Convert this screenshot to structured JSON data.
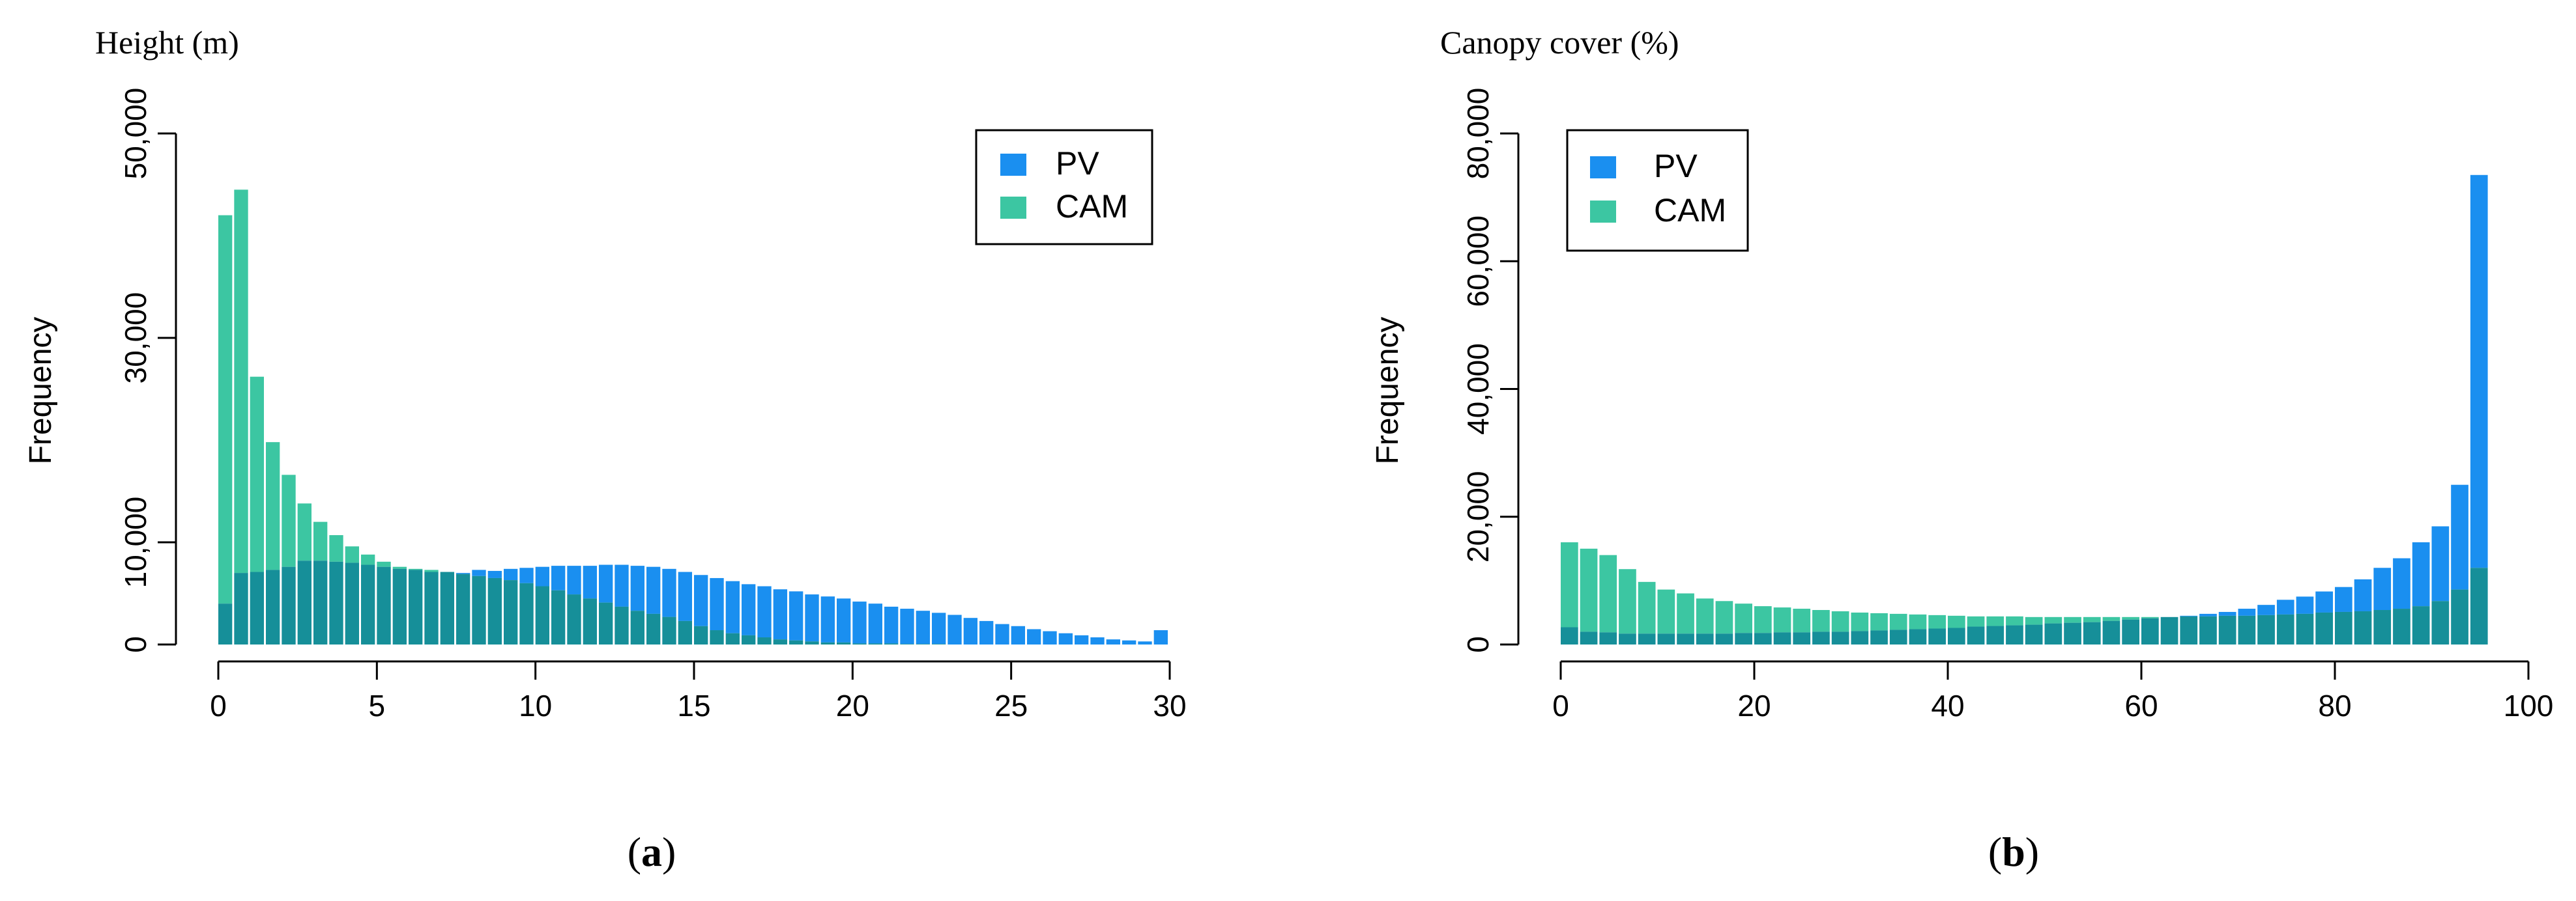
{
  "colors": {
    "pv": "#1a8ff0",
    "cam": "#3cc6a2",
    "overlap": "#168f99",
    "axis": "#000000"
  },
  "chart_data": [
    {
      "id": "a",
      "type": "bar",
      "title": "Height (m)",
      "xlabel": "",
      "ylabel": "Frequency",
      "panel_label": {
        "open": "(",
        "letter": "a",
        "close": ")"
      },
      "xlim": [
        0,
        30
      ],
      "ylim": [
        0,
        50000
      ],
      "bin_width": 0.5,
      "xticks": [
        0,
        5,
        10,
        15,
        20,
        25,
        30
      ],
      "xtick_labels": [
        "0",
        "5",
        "10",
        "15",
        "20",
        "25",
        "30"
      ],
      "yticks": [
        0,
        10000,
        30000,
        50000
      ],
      "ytick_labels": [
        "0",
        "10,000",
        "30,000",
        "50,000"
      ],
      "legend": {
        "position": "top-right",
        "entries": [
          "PV",
          "CAM"
        ]
      },
      "series": [
        {
          "name": "PV",
          "values": [
            4000,
            7000,
            7100,
            7300,
            7600,
            8200,
            8200,
            8100,
            8000,
            7800,
            7600,
            7400,
            7300,
            7100,
            7100,
            7000,
            7300,
            7200,
            7400,
            7500,
            7600,
            7700,
            7700,
            7700,
            7800,
            7800,
            7700,
            7600,
            7400,
            7100,
            6800,
            6500,
            6200,
            5900,
            5700,
            5400,
            5200,
            4900,
            4700,
            4500,
            4200,
            4000,
            3700,
            3500,
            3300,
            3100,
            2900,
            2600,
            2300,
            2000,
            1800,
            1500,
            1300,
            1100,
            900,
            700,
            500,
            400,
            300,
            1400
          ]
        },
        {
          "name": "CAM",
          "values": [
            42000,
            44500,
            26200,
            19800,
            16600,
            13800,
            12000,
            10700,
            9600,
            8800,
            8100,
            7600,
            7400,
            7300,
            7100,
            6900,
            6700,
            6500,
            6300,
            6000,
            5700,
            5300,
            4900,
            4500,
            4100,
            3700,
            3300,
            3000,
            2700,
            2300,
            1800,
            1400,
            1100,
            900,
            700,
            500,
            400,
            300,
            200,
            200,
            100,
            100,
            100,
            50,
            50,
            50,
            0,
            0,
            0,
            0,
            0,
            0,
            0,
            0,
            0,
            0,
            0,
            0,
            0,
            0
          ]
        }
      ]
    },
    {
      "id": "b",
      "type": "bar",
      "title": "Canopy cover (%)",
      "xlabel": "",
      "ylabel": "Frequency",
      "panel_label": {
        "open": "(",
        "letter": "b",
        "close": ")"
      },
      "xlim": [
        0,
        100
      ],
      "ylim": [
        0,
        80000
      ],
      "bin_width": 2,
      "xticks": [
        0,
        20,
        40,
        60,
        80,
        100
      ],
      "xtick_labels": [
        "0",
        "20",
        "40",
        "60",
        "80",
        "100"
      ],
      "yticks": [
        0,
        20000,
        40000,
        60000,
        80000
      ],
      "ytick_labels": [
        "0",
        "20,000",
        "40,000",
        "60,000",
        "80,000"
      ],
      "legend": {
        "position": "top-left",
        "entries": [
          "PV",
          "CAM"
        ]
      },
      "series": [
        {
          "name": "PV",
          "values": [
            2700,
            2000,
            1900,
            1700,
            1700,
            1700,
            1700,
            1700,
            1700,
            1800,
            1800,
            1900,
            1900,
            2000,
            2000,
            2100,
            2200,
            2300,
            2400,
            2500,
            2600,
            2800,
            2900,
            3000,
            3100,
            3300,
            3400,
            3500,
            3700,
            3900,
            4100,
            4300,
            4500,
            4800,
            5100,
            5600,
            6200,
            7000,
            7500,
            8300,
            9000,
            10200,
            12000,
            13500,
            16000,
            18500,
            25000,
            73500
          ]
        },
        {
          "name": "CAM",
          "values": [
            16000,
            15000,
            14000,
            11800,
            9800,
            8600,
            8000,
            7200,
            6800,
            6400,
            6000,
            5800,
            5600,
            5400,
            5200,
            5000,
            4900,
            4800,
            4700,
            4600,
            4500,
            4400,
            4400,
            4400,
            4300,
            4300,
            4300,
            4300,
            4300,
            4300,
            4300,
            4300,
            4400,
            4400,
            4500,
            4500,
            4600,
            4700,
            4800,
            5000,
            5100,
            5200,
            5400,
            5600,
            6000,
            6800,
            8600,
            12000
          ]
        }
      ]
    }
  ]
}
